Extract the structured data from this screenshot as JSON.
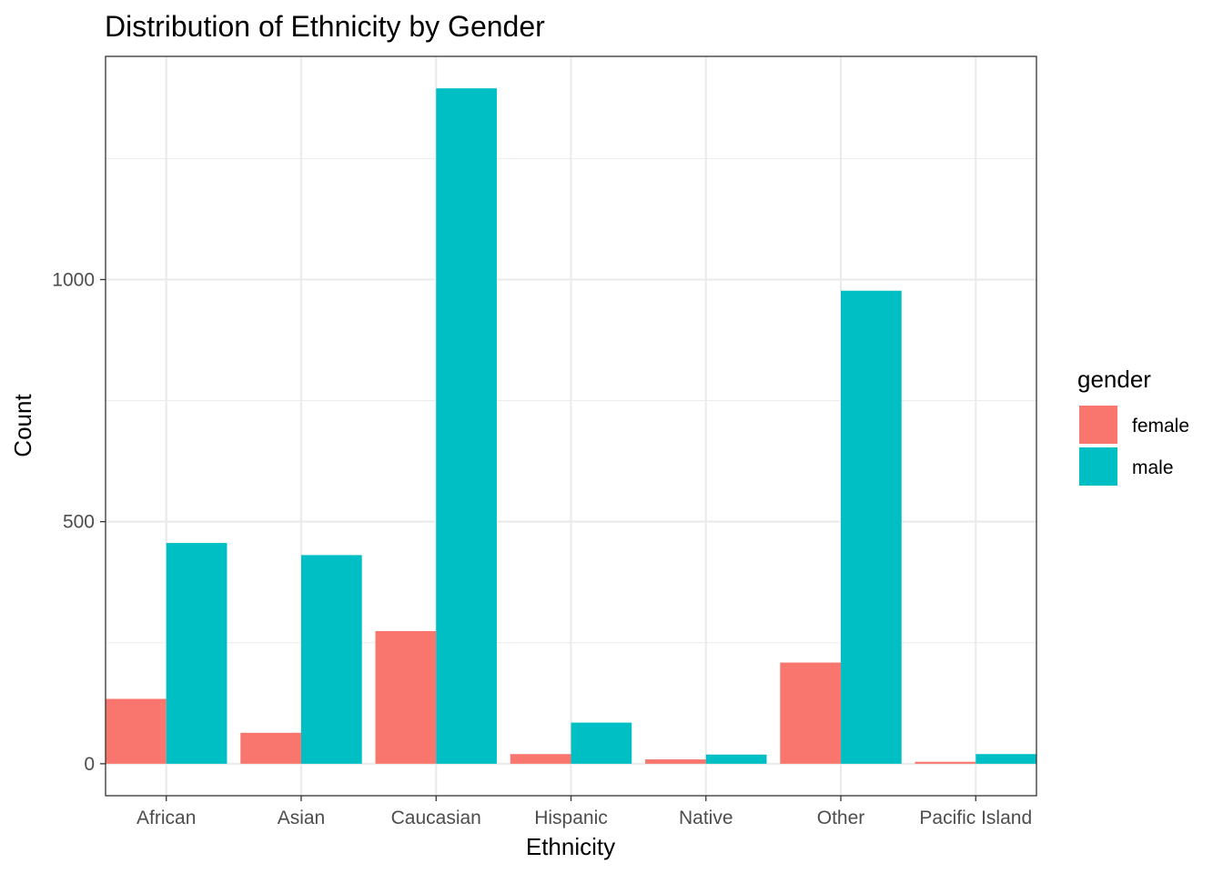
{
  "chart_data": {
    "type": "bar",
    "title": "Distribution of Ethnicity by Gender",
    "xlabel": "Ethnicity",
    "ylabel": "Count",
    "categories": [
      "African",
      "Asian",
      "Caucasian",
      "Hispanic",
      "Native",
      "Other",
      "Pacific Island"
    ],
    "series": [
      {
        "name": "female",
        "color": "#F8766D",
        "values": [
          134,
          64,
          274,
          20,
          9,
          209,
          4
        ]
      },
      {
        "name": "male",
        "color": "#00BFC4",
        "values": [
          456,
          431,
          1395,
          85,
          19,
          977,
          20
        ]
      }
    ],
    "ylim": [
      -66,
      1461
    ],
    "yticks": [
      0,
      500,
      1000
    ],
    "yticks_minor": [
      250,
      750,
      1250
    ],
    "grid": true,
    "legend": {
      "title": "gender",
      "position": "right"
    }
  }
}
